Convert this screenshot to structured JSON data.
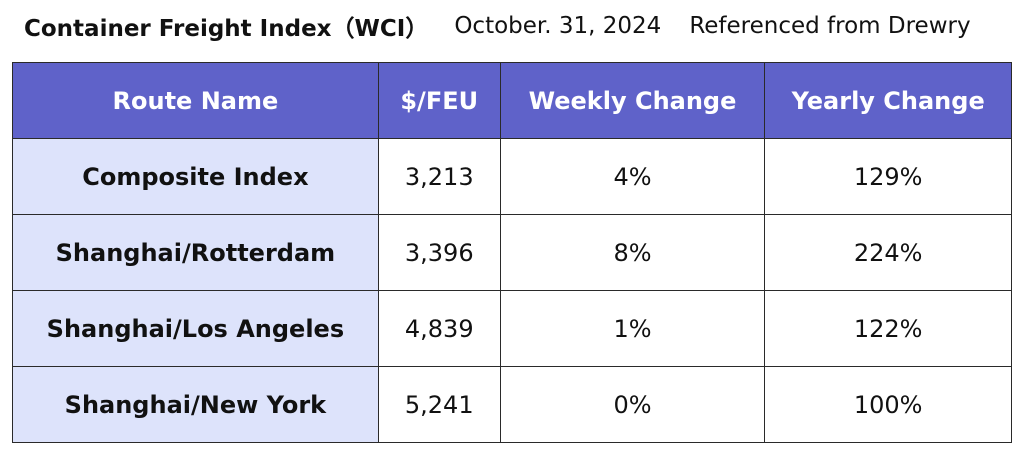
{
  "header": {
    "title": "Container Freight Index（WCI）",
    "date": "October. 31, 2024",
    "source": "Referenced from Drewry"
  },
  "table": {
    "columns": [
      "Route Name",
      "$/FEU",
      "Weekly Change",
      "Yearly Change"
    ],
    "rows": [
      [
        "Composite Index",
        "3,213",
        "4%",
        "129%"
      ],
      [
        "Shanghai/Rotterdam",
        "3,396",
        "8%",
        "224%"
      ],
      [
        "Shanghai/Los Angeles",
        "4,839",
        "1%",
        "122%"
      ],
      [
        "Shanghai/New York",
        "5,241",
        "0%",
        "100%"
      ]
    ]
  }
}
